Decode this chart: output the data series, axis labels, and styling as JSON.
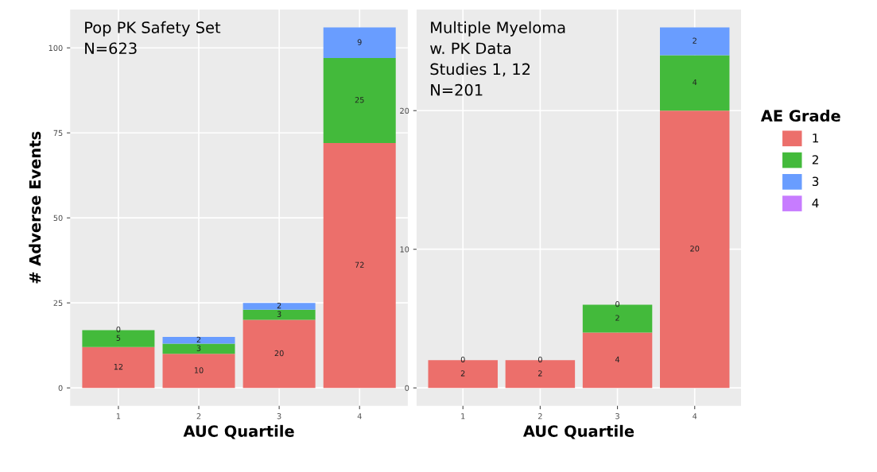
{
  "chart_data": [
    {
      "type": "bar",
      "stacked": true,
      "annotations": [
        "Pop PK Safety Set\nN=623"
      ],
      "xlabel": "AUC Quartile",
      "ylabel": "# Adverse Events",
      "categories": [
        "1",
        "2",
        "3",
        "4"
      ],
      "ylim": [
        -5.3,
        111.3
      ],
      "yticks": [
        0,
        25,
        50,
        75,
        100
      ],
      "grid": true,
      "legend": "right",
      "legend_title": "AE Grade",
      "series": [
        {
          "name": "1",
          "color": "#ec6f6b",
          "values": [
            12,
            10,
            20,
            72
          ],
          "value_labels": [
            "12",
            "10",
            "20",
            "72"
          ]
        },
        {
          "name": "2",
          "color": "#43ba3b",
          "values": [
            5,
            3,
            3,
            25
          ],
          "value_labels": [
            "5",
            "3",
            "3",
            "25"
          ]
        },
        {
          "name": "3",
          "color": "#699dff",
          "values": [
            0,
            2,
            2,
            9
          ],
          "value_labels": [
            "0",
            "2",
            "2",
            "9"
          ]
        },
        {
          "name": "4",
          "color": "#c77cff",
          "values": [
            null,
            null,
            null,
            null
          ],
          "value_labels": [
            null,
            null,
            null,
            null
          ]
        }
      ]
    },
    {
      "type": "bar",
      "stacked": true,
      "annotations": [
        "Multiple Myeloma\nw. PK Data\nStudies 1, 12\nN=201"
      ],
      "xlabel": "AUC Quartile",
      "categories": [
        "1",
        "2",
        "3",
        "4"
      ],
      "ylim": [
        -1.3,
        27.3
      ],
      "yticks": [
        0,
        10,
        20
      ],
      "grid": true,
      "series": [
        {
          "name": "1",
          "color": "#ec6f6b",
          "values": [
            2,
            2,
            4,
            20
          ],
          "value_labels": [
            "2",
            "2",
            "4",
            "20"
          ]
        },
        {
          "name": "2",
          "color": "#43ba3b",
          "values": [
            0,
            0,
            2,
            4
          ],
          "value_labels": [
            "0",
            "0",
            "2",
            "4"
          ]
        },
        {
          "name": "3",
          "color": "#699dff",
          "values": [
            null,
            null,
            0,
            2
          ],
          "value_labels": [
            null,
            null,
            "0",
            "2"
          ]
        }
      ]
    }
  ]
}
